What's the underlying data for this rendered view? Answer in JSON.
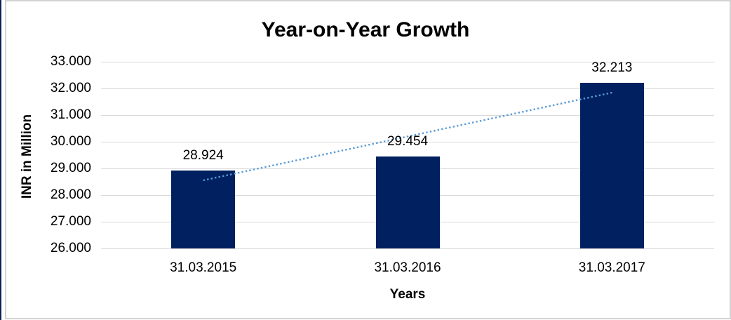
{
  "frame": {
    "border_color": "#d3d3d3",
    "left_strip_color": "#0d2257"
  },
  "chart_data": {
    "type": "bar",
    "title": "Year-on-Year Growth",
    "categories": [
      "31.03.2015",
      "31.03.2016",
      "31.03.2017"
    ],
    "values": [
      28.924,
      29.454,
      32.213
    ],
    "data_labels": [
      "28.924",
      "29.454",
      "32.213"
    ],
    "xlabel": "Years",
    "ylabel": "INR in Million",
    "ylim": [
      26,
      33
    ],
    "ytick_step": 1,
    "ytick_labels": [
      "26.000",
      "27.000",
      "28.000",
      "29.000",
      "30.000",
      "31.000",
      "32.000",
      "33.000"
    ],
    "grid": true,
    "legend": "none",
    "bar_color": "#002060",
    "gridline_color": "#d9d9d9",
    "trendline": {
      "type": "linear",
      "style": "dotted",
      "color": "#5b9bd5"
    }
  }
}
